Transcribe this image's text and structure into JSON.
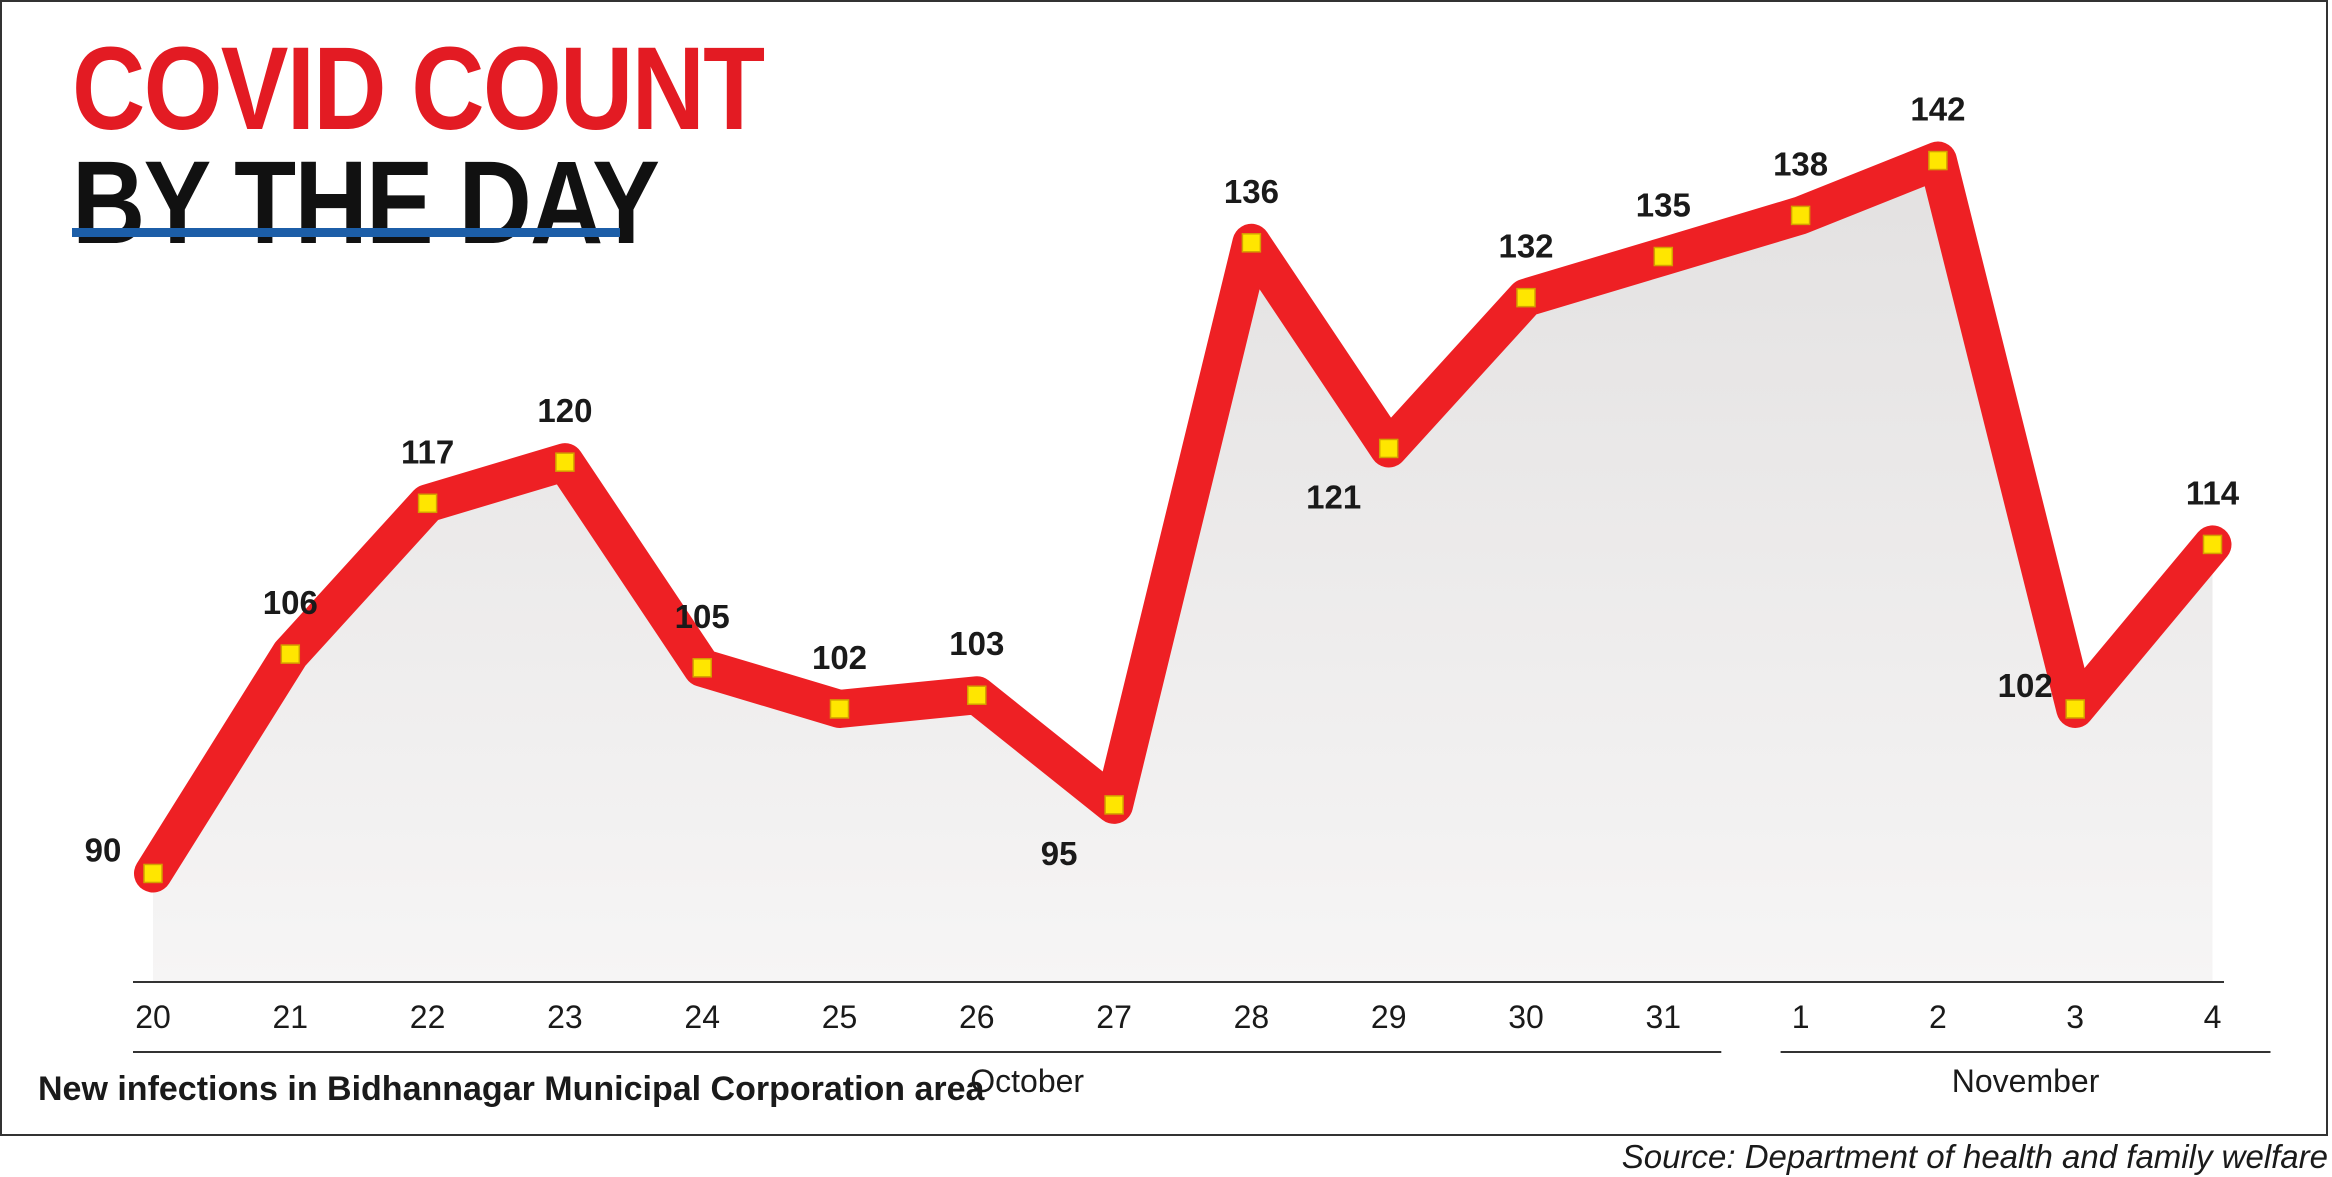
{
  "title_line1": "COVID COUNT",
  "title_line2": "BY THE DAY",
  "subtitle": "New infections in Bidhannagar Municipal Corporation area",
  "source": "Source: Department of health and family welfare",
  "colors": {
    "line": "#ee2024",
    "marker": "#ffe600",
    "title_red": "#e31b23",
    "title_black": "#111111",
    "rule": "#1c5ea8",
    "area": "#e3e1e1"
  },
  "chart_data": {
    "type": "area",
    "x": [
      "20",
      "21",
      "22",
      "23",
      "24",
      "25",
      "26",
      "27",
      "28",
      "29",
      "30",
      "31",
      "1",
      "2",
      "3",
      "4"
    ],
    "values": [
      90,
      106,
      117,
      120,
      105,
      102,
      103,
      95,
      136,
      121,
      132,
      135,
      138,
      142,
      102,
      114
    ],
    "month_groups": [
      {
        "label": "October",
        "from": 0,
        "to": 11
      },
      {
        "label": "November",
        "from": 12,
        "to": 15
      }
    ],
    "data_labels": [
      "90",
      "106",
      "117",
      "120",
      "105",
      "102",
      "103",
      "95",
      "136",
      "121",
      "132",
      "135",
      "138",
      "142",
      "102",
      "114"
    ],
    "label_position": [
      "left",
      "above",
      "above",
      "above",
      "above",
      "above",
      "above",
      "below",
      "above",
      "below",
      "above",
      "above",
      "above",
      "above",
      "left",
      "above"
    ],
    "ylim": [
      85,
      147
    ],
    "grid": false,
    "legend": "none"
  }
}
